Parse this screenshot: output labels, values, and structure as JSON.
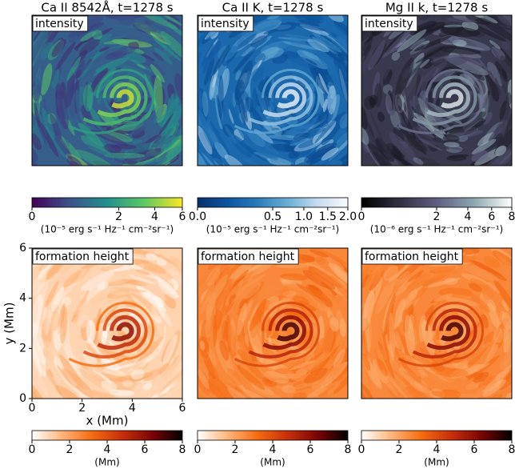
{
  "intensity_panels": [
    {
      "title": "Ca II 8542Å, t=1278 s",
      "label": "intensity",
      "colorbar": {
        "lim": [
          0,
          6
        ],
        "scale": "sqrt",
        "ticks": [
          0,
          2,
          4,
          6
        ],
        "label": "(10⁻⁵ erg s⁻¹ Hz⁻¹ cm⁻²sr⁻¹)",
        "colormap": [
          "#440154",
          "#3b528b",
          "#21908d",
          "#5dc963",
          "#fde725"
        ]
      }
    },
    {
      "title": "Ca II K, t=1278 s",
      "label": "intensity",
      "colorbar": {
        "lim": [
          0,
          2
        ],
        "scale": "sqrt",
        "ticks": [
          {
            "value": 0,
            "label": "0.0"
          },
          0.5,
          {
            "value": 1,
            "label": "1.0"
          },
          1.5,
          {
            "value": 2,
            "label": "2.0"
          }
        ],
        "label": "(10⁻⁵ erg s⁻¹ Hz⁻¹ cm⁻²sr⁻¹)",
        "colormap": [
          "#08306b",
          "#0b559f",
          "#2b7bba",
          "#6aaed6",
          "#c6dbef",
          "#f7fbff"
        ]
      }
    },
    {
      "title": "Mg II k, t=1278 s",
      "label": "intensity",
      "colorbar": {
        "lim": [
          0,
          8
        ],
        "scale": "sqrt",
        "ticks": [
          0,
          2,
          4,
          6,
          8
        ],
        "label": "(10⁻⁶ erg s⁻¹ Hz⁻¹ cm⁻²sr⁻¹)",
        "colormap": [
          "#000000",
          "#2f2f41",
          "#5e5e82",
          "#8ea7b0",
          "#ffffff"
        ]
      }
    }
  ],
  "height_panels": [
    {
      "label": "formation height",
      "colorbar": {
        "lim": [
          0,
          8
        ],
        "scale": "linear",
        "ticks": [
          0,
          2,
          4,
          6,
          8
        ],
        "label": "(Mm)",
        "colormap": [
          "#ffffff",
          "#fdb57a",
          "#f66a10",
          "#c92e0a",
          "#7a0404",
          "#000000"
        ]
      }
    },
    {
      "label": "formation height",
      "colorbar": {
        "lim": [
          0,
          8
        ],
        "scale": "linear",
        "ticks": [
          0,
          2,
          4,
          6,
          8
        ],
        "label": "(Mm)",
        "colormap": [
          "#ffffff",
          "#fdb57a",
          "#f66a10",
          "#c92e0a",
          "#7a0404",
          "#000000"
        ]
      }
    },
    {
      "label": "formation height",
      "colorbar": {
        "lim": [
          0,
          8
        ],
        "scale": "linear",
        "ticks": [
          0,
          2,
          4,
          6,
          8
        ],
        "label": "(Mm)",
        "colormap": [
          "#ffffff",
          "#fdb57a",
          "#f66a10",
          "#c92e0a",
          "#7a0404",
          "#000000"
        ]
      }
    }
  ],
  "axes": {
    "xlabel": "x (Mm)",
    "ylabel": "y (Mm)",
    "xlim": [
      0,
      6
    ],
    "ylim": [
      0,
      6
    ],
    "xticks": [
      0,
      2,
      4,
      6
    ],
    "yticks": [
      0,
      2,
      4,
      6
    ]
  }
}
